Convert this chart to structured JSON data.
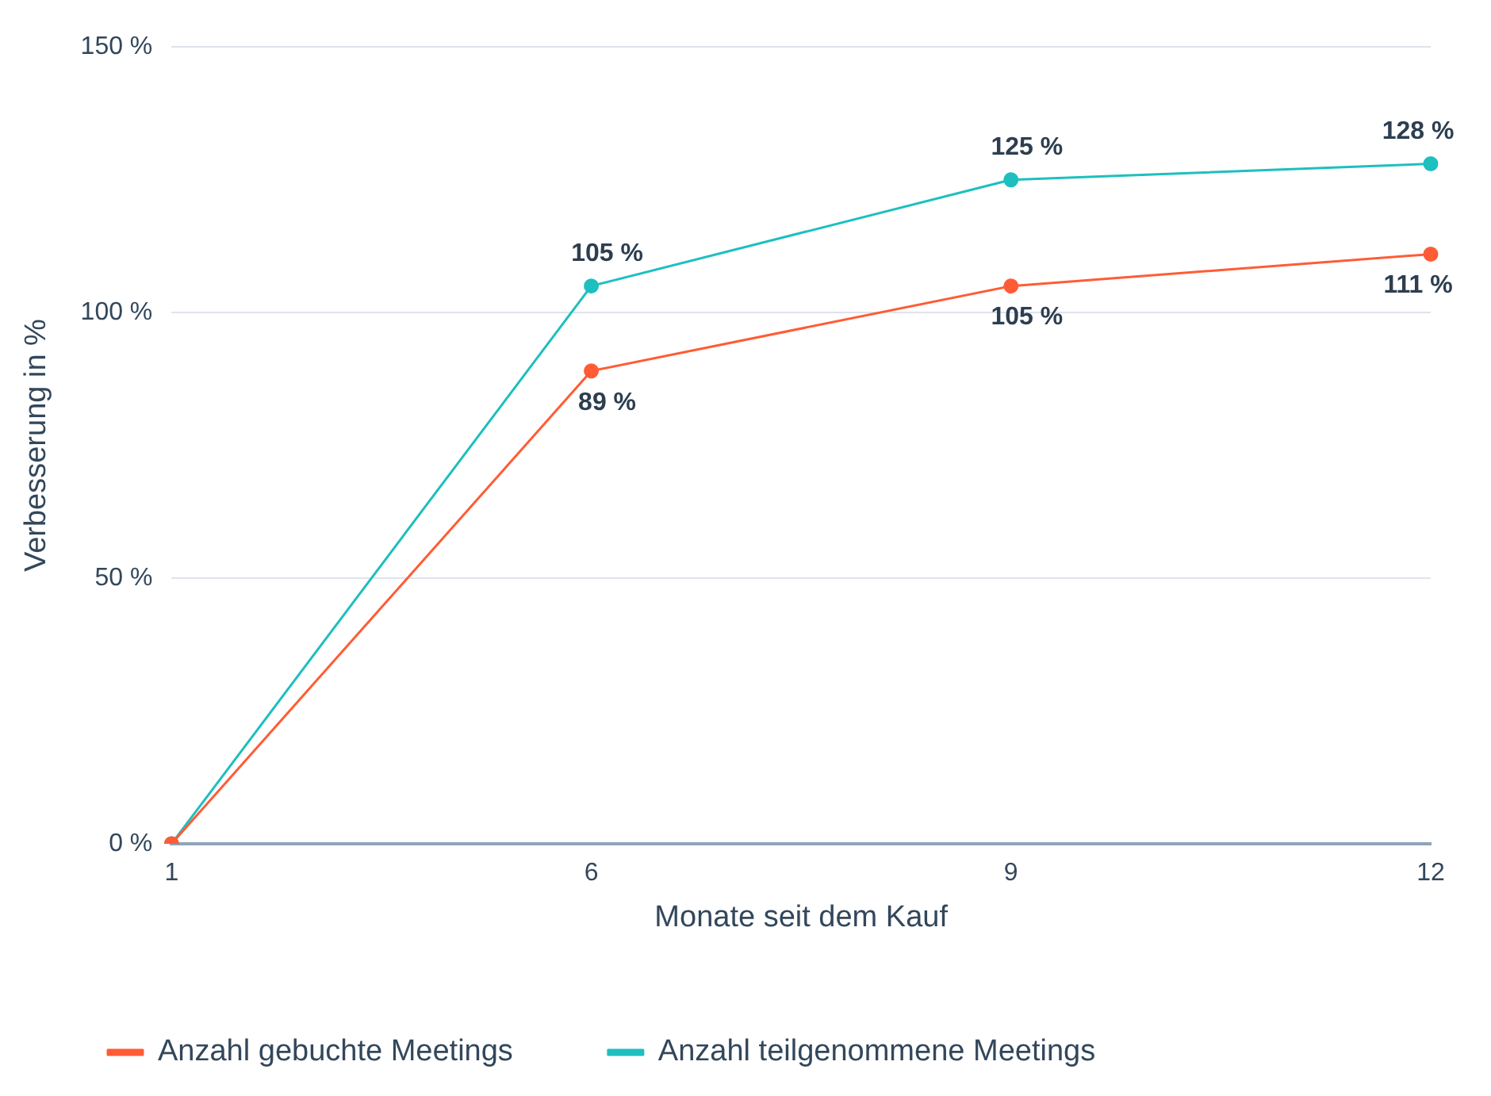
{
  "chart_data": {
    "type": "line",
    "xlabel": "Monate seit dem Kauf",
    "ylabel": "Verbesserung in %",
    "categories": [
      "1",
      "6",
      "9",
      "12"
    ],
    "series": [
      {
        "name": "Anzahl gebuchte Meetings",
        "color": "#ff5c35",
        "values": [
          0,
          89,
          105,
          111
        ],
        "value_labels": [
          null,
          "89 %",
          "105 %",
          "111 %"
        ]
      },
      {
        "name": "Anzahl teilgenommene Meetings",
        "color": "#1ebfbf",
        "values": [
          0,
          105,
          125,
          128
        ],
        "value_labels": [
          null,
          "105 %",
          "125 %",
          "128 %"
        ]
      }
    ],
    "ylim": [
      0,
      150
    ],
    "yticks": [
      {
        "value": 0,
        "label": "0 %"
      },
      {
        "value": 50,
        "label": "50 %"
      },
      {
        "value": 100,
        "label": "100 %"
      },
      {
        "value": 150,
        "label": "150 %"
      }
    ],
    "grid": "y",
    "legend": "bottom left",
    "marker": "circle",
    "line_style": "solid"
  }
}
